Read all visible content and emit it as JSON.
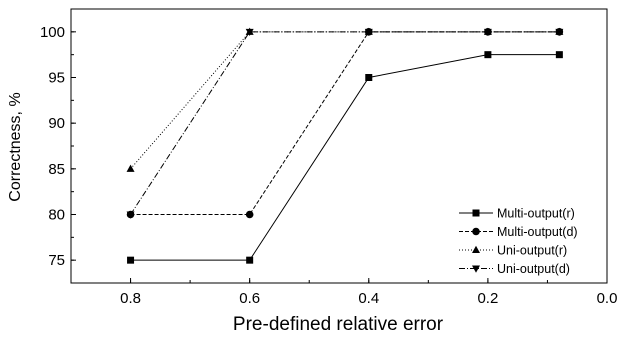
{
  "chart_data": {
    "type": "line",
    "title": "",
    "xlabel": "Pre-defined relative error",
    "ylabel": "Correctness, %",
    "xlim": [
      0.9,
      0.0
    ],
    "ylim": [
      72.5,
      102.5
    ],
    "x_reversed": true,
    "xticks": [
      "0.8",
      "0.6",
      "0.4",
      "0.2",
      "0.0"
    ],
    "yticks": [
      "75",
      "80",
      "85",
      "90",
      "95",
      "100"
    ],
    "grid": false,
    "legend_position": "lower-right",
    "series": [
      {
        "name": "Multi-output(r)",
        "marker": "square",
        "line": "solid",
        "x": [
          0.8,
          0.6,
          0.4,
          0.2,
          0.08
        ],
        "y": [
          75,
          75,
          95,
          97.5,
          97.5
        ]
      },
      {
        "name": "Multi-output(d)",
        "marker": "circle",
        "line": "dashed",
        "x": [
          0.8,
          0.6,
          0.4,
          0.2,
          0.08
        ],
        "y": [
          80,
          80,
          100,
          100,
          100
        ]
      },
      {
        "name": "Uni-output(r)",
        "marker": "triangle-up",
        "line": "dotted",
        "x": [
          0.8,
          0.6,
          0.4,
          0.2,
          0.08
        ],
        "y": [
          85,
          100,
          100,
          100,
          100
        ]
      },
      {
        "name": "Uni-output(d)",
        "marker": "triangle-down",
        "line": "dashdot",
        "x": [
          0.8,
          0.6,
          0.4,
          0.2,
          0.08
        ],
        "y": [
          80,
          100,
          100,
          100,
          100
        ]
      }
    ]
  }
}
